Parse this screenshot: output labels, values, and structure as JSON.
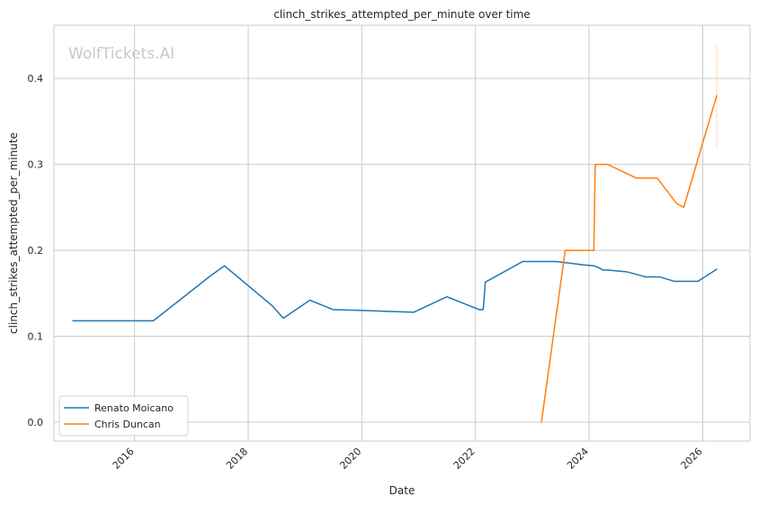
{
  "chart_data": {
    "type": "line",
    "title": "clinch_strikes_attempted_per_minute over time",
    "xlabel": "Date",
    "ylabel": "clinch_strikes_attempted_per_minute",
    "watermark": "WolfTickets.AI",
    "xlim": [
      "2014-08-01",
      "2026-11-01"
    ],
    "ylim": [
      -0.022,
      0.462
    ],
    "x_ticks": [
      "2016-01-01",
      "2018-01-01",
      "2020-01-01",
      "2022-01-01",
      "2024-01-01",
      "2026-01-01"
    ],
    "x_tick_labels": [
      "2016",
      "2018",
      "2020",
      "2022",
      "2024",
      "2026"
    ],
    "y_ticks": [
      0.0,
      0.1,
      0.2,
      0.3,
      0.4
    ],
    "y_tick_labels": [
      "0.0",
      "0.1",
      "0.2",
      "0.3",
      "0.4"
    ],
    "grid": true,
    "legend_position": "bottom-left",
    "series": [
      {
        "name": "Renato Moicano",
        "color": "#1f77b4",
        "x": [
          "2014-12-01",
          "2016-05-01",
          "2017-05-01",
          "2017-08-01",
          "2018-06-01",
          "2018-08-15",
          "2019-02-01",
          "2019-07-01",
          "2020-01-01",
          "2020-12-01",
          "2021-07-01",
          "2022-01-25",
          "2022-02-20",
          "2022-03-05",
          "2022-11-01",
          "2023-06-01",
          "2023-12-01",
          "2024-02-01",
          "2024-03-01",
          "2024-04-01",
          "2024-05-01",
          "2024-09-01",
          "2025-01-01",
          "2025-04-01",
          "2025-07-01",
          "2025-12-01",
          "2026-04-01"
        ],
        "y": [
          0.118,
          0.118,
          0.17,
          0.182,
          0.136,
          0.121,
          0.142,
          0.131,
          0.13,
          0.128,
          0.146,
          0.131,
          0.131,
          0.163,
          0.187,
          0.187,
          0.183,
          0.182,
          0.18,
          0.177,
          0.177,
          0.175,
          0.169,
          0.169,
          0.164,
          0.164,
          0.178
        ]
      },
      {
        "name": "Chris Duncan",
        "color": "#ff7f0e",
        "x": [
          "2023-03-01",
          "2023-08-01",
          "2024-02-01",
          "2024-02-10",
          "2024-03-20",
          "2024-05-01",
          "2024-11-01",
          "2025-03-15",
          "2025-07-15",
          "2025-09-01",
          "2026-01-01",
          "2026-04-01"
        ],
        "y": [
          0.0,
          0.2,
          0.2,
          0.3,
          0.3,
          0.3,
          0.284,
          0.284,
          0.255,
          0.25,
          0.325,
          0.38
        ]
      }
    ],
    "error_bar": {
      "series": "Chris Duncan",
      "x": "2026-04-01",
      "low": 0.32,
      "high": 0.438
    }
  }
}
